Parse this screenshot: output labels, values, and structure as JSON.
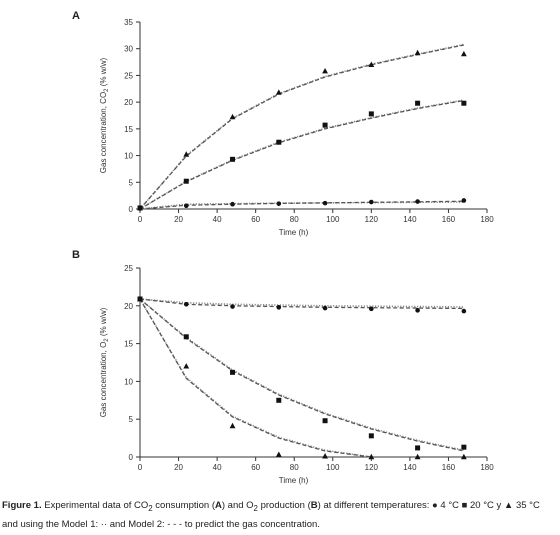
{
  "chart_data": [
    {
      "panel": "A",
      "type": "scatter",
      "xlabel": "Time (h)",
      "ylabel_prefix": "Gas concentration, CO",
      "ylabel_sub": "2",
      "ylabel_suffix": " (% w/w)",
      "xlim": [
        0,
        180
      ],
      "ylim": [
        0,
        35
      ],
      "xticks": [
        0,
        20,
        40,
        60,
        80,
        100,
        120,
        140,
        160,
        180
      ],
      "yticks": [
        0,
        5,
        10,
        15,
        20,
        25,
        30,
        35
      ],
      "series": [
        {
          "name": "4 °C",
          "marker": "circle",
          "x": [
            0,
            24,
            48,
            72,
            96,
            120,
            144,
            168
          ],
          "y": [
            0.1,
            0.6,
            0.9,
            1.0,
            1.1,
            1.3,
            1.4,
            1.6
          ],
          "model1": [
            [
              0,
              0
            ],
            [
              24,
              0.9
            ],
            [
              48,
              1.0
            ],
            [
              72,
              1.1
            ],
            [
              96,
              1.15
            ],
            [
              120,
              1.2
            ],
            [
              144,
              1.25
            ],
            [
              168,
              1.3
            ]
          ],
          "model2": [
            [
              0,
              0
            ],
            [
              24,
              0.7
            ],
            [
              48,
              0.9
            ],
            [
              72,
              1.05
            ],
            [
              96,
              1.15
            ],
            [
              120,
              1.25
            ],
            [
              144,
              1.35
            ],
            [
              168,
              1.45
            ]
          ]
        },
        {
          "name": "20 °C",
          "marker": "square",
          "x": [
            0,
            24,
            48,
            72,
            96,
            120,
            144,
            168
          ],
          "y": [
            0.2,
            5.2,
            9.3,
            12.5,
            15.7,
            17.8,
            19.8,
            19.8
          ],
          "model1": [
            [
              0,
              0
            ],
            [
              24,
              5.2
            ],
            [
              48,
              9.2
            ],
            [
              72,
              12.5
            ],
            [
              96,
              15.1
            ],
            [
              120,
              17.1
            ],
            [
              144,
              18.9
            ],
            [
              168,
              20.4
            ]
          ],
          "model2": [
            [
              0,
              0
            ],
            [
              24,
              5.1
            ],
            [
              48,
              9.1
            ],
            [
              72,
              12.4
            ],
            [
              96,
              15.0
            ],
            [
              120,
              17.0
            ],
            [
              144,
              18.8
            ],
            [
              168,
              20.3
            ]
          ]
        },
        {
          "name": "35 °C",
          "marker": "triangle",
          "x": [
            0,
            24,
            48,
            72,
            96,
            120,
            144,
            168
          ],
          "y": [
            0.2,
            10.2,
            17.2,
            21.8,
            25.8,
            27.0,
            29.2,
            29.0
          ],
          "model1": [
            [
              0,
              0
            ],
            [
              24,
              10.0
            ],
            [
              48,
              17.0
            ],
            [
              72,
              21.6
            ],
            [
              96,
              24.8
            ],
            [
              120,
              27.1
            ],
            [
              144,
              29.0
            ],
            [
              168,
              30.8
            ]
          ],
          "model2": [
            [
              0,
              0
            ],
            [
              24,
              9.9
            ],
            [
              48,
              16.9
            ],
            [
              72,
              21.5
            ],
            [
              96,
              24.7
            ],
            [
              120,
              27.0
            ],
            [
              144,
              28.9
            ],
            [
              168,
              30.7
            ]
          ]
        }
      ]
    },
    {
      "panel": "B",
      "type": "scatter",
      "xlabel": "Time (h)",
      "ylabel_prefix": "Gas concentration, O",
      "ylabel_sub": "2",
      "ylabel_suffix": " (% w/w)",
      "xlim": [
        0,
        180
      ],
      "ylim": [
        0,
        25
      ],
      "xticks": [
        0,
        20,
        40,
        60,
        80,
        100,
        120,
        140,
        160,
        180
      ],
      "yticks": [
        0,
        5,
        10,
        15,
        20,
        25
      ],
      "series": [
        {
          "name": "4 °C",
          "marker": "circle",
          "x": [
            0,
            24,
            48,
            72,
            96,
            120,
            144,
            168
          ],
          "y": [
            20.9,
            20.2,
            19.9,
            19.8,
            19.7,
            19.6,
            19.4,
            19.3
          ],
          "model1": [
            [
              0,
              20.9
            ],
            [
              24,
              20.4
            ],
            [
              48,
              20.2
            ],
            [
              72,
              20.1
            ],
            [
              96,
              20.0
            ],
            [
              120,
              19.95
            ],
            [
              144,
              19.9
            ],
            [
              168,
              19.85
            ]
          ],
          "model2": [
            [
              0,
              20.9
            ],
            [
              24,
              20.2
            ],
            [
              48,
              20.0
            ],
            [
              72,
              19.9
            ],
            [
              96,
              19.8
            ],
            [
              120,
              19.75
            ],
            [
              144,
              19.7
            ],
            [
              168,
              19.65
            ]
          ]
        },
        {
          "name": "20 °C",
          "marker": "square",
          "x": [
            0,
            24,
            48,
            72,
            96,
            120,
            144,
            168
          ],
          "y": [
            20.9,
            15.9,
            11.2,
            7.5,
            4.8,
            2.8,
            1.2,
            1.3
          ],
          "model1": [
            [
              0,
              20.9
            ],
            [
              24,
              15.8
            ],
            [
              48,
              11.5
            ],
            [
              72,
              8.3
            ],
            [
              96,
              5.8
            ],
            [
              120,
              3.8
            ],
            [
              144,
              2.2
            ],
            [
              168,
              0.9
            ]
          ],
          "model2": [
            [
              0,
              20.9
            ],
            [
              24,
              15.7
            ],
            [
              48,
              11.4
            ],
            [
              72,
              8.2
            ],
            [
              96,
              5.7
            ],
            [
              120,
              3.7
            ],
            [
              144,
              2.1
            ],
            [
              168,
              0.8
            ]
          ]
        },
        {
          "name": "35 °C",
          "marker": "triangle",
          "x": [
            0,
            24,
            48,
            72,
            96,
            120,
            144,
            168
          ],
          "y": [
            20.9,
            12.0,
            4.1,
            0.3,
            0.1,
            0.0,
            0.0,
            0.0
          ],
          "model1": [
            [
              0,
              20.9
            ],
            [
              24,
              10.5
            ],
            [
              48,
              5.4
            ],
            [
              72,
              2.6
            ],
            [
              96,
              0.9
            ],
            [
              120,
              0.0
            ]
          ],
          "model2": [
            [
              0,
              20.9
            ],
            [
              24,
              10.4
            ],
            [
              48,
              5.3
            ],
            [
              72,
              2.5
            ],
            [
              96,
              0.8
            ],
            [
              120,
              0.0
            ]
          ]
        }
      ]
    }
  ],
  "caption": {
    "label": "Figure 1.",
    "text_1": " Experimental data of CO",
    "sub_1": "2",
    "text_2": " consumption (",
    "bold_a": "A",
    "text_3": ") and O",
    "sub_2": "2",
    "text_4": " production (",
    "bold_b": "B",
    "text_5": ") at different temperatures: ● 4 °C ■ 20 °C y ▲ 35 °C and using  the Model 1: ·· and Model 2: - - - to predict the gas concentration."
  }
}
